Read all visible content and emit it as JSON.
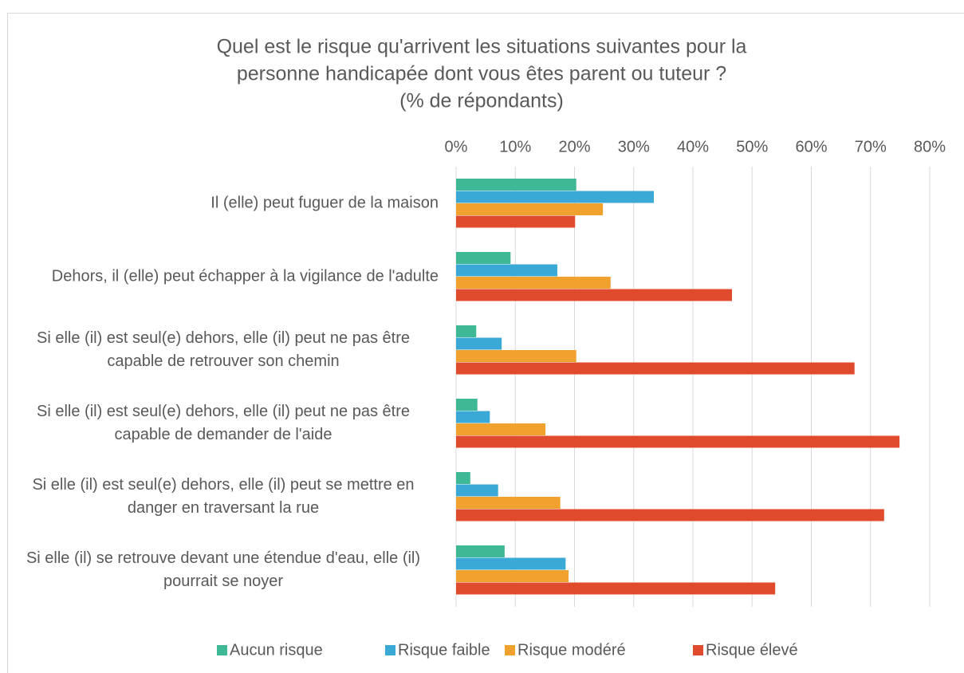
{
  "chart_data": {
    "type": "hbar",
    "title": [
      "Quel est le risque qu'arrivent les situations suivantes pour la",
      "personne handicapée dont vous êtes parent ou tuteur ?",
      "(% de répondants)"
    ],
    "categories": [
      "Il (elle) peut fuguer de la maison",
      "Dehors, il (elle) peut échapper à la vigilance de l'adulte",
      "Si elle (il) est seul(e) dehors, elle (il) peut ne pas être capable de retrouver son chemin",
      "Si elle (il) est seul(e) dehors, elle (il) peut ne pas être capable de demander de l'aide",
      "Si elle (il) est seul(e) dehors, elle (il) peut se mettre en danger en traversant la rue",
      "Si elle (il) se retrouve devant une étendue d'eau, elle (il) pourrait se noyer"
    ],
    "series": [
      {
        "name": "Aucun risque",
        "color": "#3fb895",
        "values": [
          20.3,
          9.2,
          3.4,
          3.6,
          2.4,
          8.2
        ]
      },
      {
        "name": "Risque faible",
        "color": "#3aa9d6",
        "values": [
          33.4,
          17.1,
          7.7,
          5.7,
          7.1,
          18.5
        ]
      },
      {
        "name": "Risque modéré",
        "color": "#f0a12e",
        "values": [
          24.8,
          26.1,
          20.3,
          15.1,
          17.6,
          19.0
        ]
      },
      {
        "name": "Risque élevé",
        "color": "#e14b2d",
        "values": [
          20.1,
          46.6,
          67.3,
          74.9,
          72.3,
          53.9
        ]
      }
    ],
    "xlim": [
      0,
      80
    ],
    "xticks": [
      {
        "value": 0,
        "label": "0%"
      },
      {
        "value": 10,
        "label": "10%"
      },
      {
        "value": 20,
        "label": "20%"
      },
      {
        "value": 30,
        "label": "30%"
      },
      {
        "value": 40,
        "label": "40%"
      },
      {
        "value": 50,
        "label": "50%"
      },
      {
        "value": 60,
        "label": "60%"
      },
      {
        "value": 70,
        "label": "70%"
      },
      {
        "value": 80,
        "label": "80%"
      }
    ],
    "grid": true,
    "legend": "bottom"
  }
}
